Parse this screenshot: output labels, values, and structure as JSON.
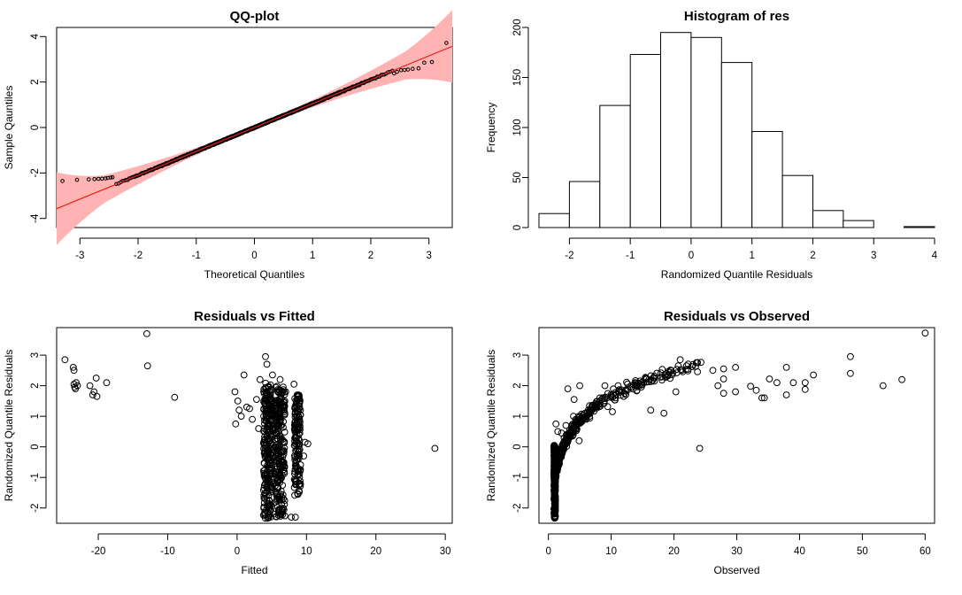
{
  "chart_data": [
    {
      "type": "scatter",
      "id": "qq",
      "title": "QQ-plot",
      "xlabel": "Theoretical Quantiles",
      "ylabel": "Sample Qauntiles",
      "xlim": [
        -3.4,
        3.4
      ],
      "ylim": [
        -4.4,
        4.4
      ],
      "xticks": [
        "-3",
        "-2",
        "-1",
        "0",
        "1",
        "2",
        "3"
      ],
      "yticks": [
        "-4",
        "-2",
        "0",
        "2",
        "4"
      ],
      "n_points": 1020,
      "reference_line": {
        "intercept": 0.0,
        "slope": 1.05,
        "color": "#e8211e"
      },
      "confidence_band_color": "#ffb3b3",
      "tail_points": [
        [
          -3.3,
          -2.35
        ],
        [
          -3.05,
          -2.3
        ],
        [
          -2.85,
          -2.28
        ],
        [
          -2.75,
          -2.27
        ],
        [
          -2.68,
          -2.26
        ],
        [
          -2.62,
          -2.25
        ],
        [
          -2.56,
          -2.24
        ],
        [
          -2.52,
          -2.22
        ],
        [
          -2.47,
          -2.2
        ],
        [
          -2.44,
          -2.19
        ],
        [
          2.4,
          2.38
        ],
        [
          2.45,
          2.45
        ],
        [
          2.52,
          2.52
        ],
        [
          2.58,
          2.53
        ],
        [
          2.64,
          2.55
        ],
        [
          2.72,
          2.58
        ],
        [
          2.82,
          2.6
        ],
        [
          2.92,
          2.85
        ],
        [
          3.05,
          2.88
        ],
        [
          3.3,
          3.72
        ]
      ]
    },
    {
      "type": "bar",
      "id": "hist",
      "title": "Histogram of res",
      "xlabel": "Randomized Quantile Residuals",
      "ylabel": "Frequency",
      "bin_edges": [
        -2.5,
        -2.0,
        -1.5,
        -1.0,
        -0.5,
        0.0,
        0.5,
        1.0,
        1.5,
        2.0,
        2.5,
        3.0,
        3.5,
        4.0
      ],
      "values": [
        14,
        46,
        122,
        173,
        195,
        190,
        165,
        96,
        52,
        17,
        7,
        0,
        1
      ],
      "xlim": [
        -2.5,
        4.0
      ],
      "ylim": [
        0,
        200
      ],
      "xticks": [
        "-2",
        "-1",
        "0",
        "1",
        "2",
        "3",
        "4"
      ],
      "yticks": [
        "0",
        "50",
        "100",
        "150",
        "200"
      ]
    },
    {
      "type": "scatter",
      "id": "rvf",
      "title": "Residuals vs Fitted",
      "xlabel": "Fitted",
      "ylabel": "Randomized Quantile Residuals",
      "xlim": [
        -26,
        31
      ],
      "ylim": [
        -2.5,
        3.9
      ],
      "xticks": [
        "-20",
        "-10",
        "0",
        "10",
        "20",
        "30"
      ],
      "yticks": [
        "-2",
        "-1",
        "0",
        "1",
        "2",
        "3"
      ],
      "points": [
        [
          -24.8,
          2.85
        ],
        [
          -23.6,
          2.6
        ],
        [
          -23.5,
          2.5
        ],
        [
          -23.5,
          2.05
        ],
        [
          -23.4,
          1.95
        ],
        [
          -23.3,
          1.9
        ],
        [
          -23.2,
          2.1
        ],
        [
          -23.0,
          2.0
        ],
        [
          -21.2,
          2.0
        ],
        [
          -20.8,
          1.7
        ],
        [
          -20.6,
          1.8
        ],
        [
          -20.3,
          2.25
        ],
        [
          -20.2,
          1.65
        ],
        [
          -18.8,
          2.1
        ],
        [
          -13.0,
          3.7
        ],
        [
          -12.9,
          2.65
        ],
        [
          -9.0,
          1.62
        ],
        [
          28.5,
          -0.05
        ],
        [
          -0.3,
          1.8
        ],
        [
          -0.2,
          0.75
        ],
        [
          0.1,
          1.5
        ],
        [
          0.3,
          1.2
        ],
        [
          0.6,
          1.0
        ],
        [
          1.0,
          2.35
        ],
        [
          1.4,
          1.3
        ],
        [
          1.8,
          1.25
        ],
        [
          2.2,
          0.9
        ],
        [
          2.8,
          1.55
        ],
        [
          3.1,
          0.6
        ],
        [
          3.3,
          2.2
        ],
        [
          4.1,
          2.95
        ],
        [
          4.3,
          2.7
        ],
        [
          5.1,
          2.35
        ],
        [
          6.2,
          2.2
        ],
        [
          7.0,
          1.8
        ],
        [
          8.2,
          2.05
        ],
        [
          9.8,
          0.15
        ],
        [
          10.2,
          0.1
        ],
        [
          9.6,
          -0.3
        ],
        [
          8.4,
          -2.3
        ],
        [
          7.8,
          -2.3
        ],
        [
          5.3,
          -2.2
        ]
      ],
      "clusters": [
        {
          "x": 4.4,
          "y_range": [
            -2.35,
            2.1
          ],
          "spread": 0.6,
          "count": 240
        },
        {
          "x": 6.2,
          "y_range": [
            -2.3,
            2.0
          ],
          "spread": 0.7,
          "count": 200
        },
        {
          "x": 8.7,
          "y_range": [
            -1.6,
            1.7
          ],
          "spread": 0.45,
          "count": 150
        },
        {
          "x": 5.2,
          "y_range": [
            -1.5,
            1.6
          ],
          "spread": 1.0,
          "count": 60
        }
      ]
    },
    {
      "type": "scatter",
      "id": "rvo",
      "title": "Residuals vs Observed",
      "xlabel": "Observed",
      "ylabel": "Randomized Quantile Residuals",
      "xlim": [
        -1.5,
        61.5
      ],
      "ylim": [
        -2.5,
        3.9
      ],
      "xticks": [
        "0",
        "10",
        "20",
        "30",
        "40",
        "50",
        "60"
      ],
      "yticks": [
        "-2",
        "-1",
        "0",
        "1",
        "2",
        "3"
      ],
      "points": [
        [
          60.0,
          3.72
        ],
        [
          48.1,
          2.95
        ],
        [
          48.1,
          2.4
        ],
        [
          56.3,
          2.2
        ],
        [
          53.3,
          2.0
        ],
        [
          42.2,
          2.35
        ],
        [
          40.9,
          2.1
        ],
        [
          40.9,
          1.88
        ],
        [
          39.0,
          2.1
        ],
        [
          37.9,
          2.6
        ],
        [
          37.9,
          1.7
        ],
        [
          36.4,
          2.1
        ],
        [
          35.2,
          2.22
        ],
        [
          34.4,
          1.6
        ],
        [
          34.0,
          1.6
        ],
        [
          33.1,
          1.85
        ],
        [
          32.2,
          1.98
        ],
        [
          29.8,
          2.6
        ],
        [
          29.8,
          1.8
        ],
        [
          27.9,
          2.55
        ],
        [
          27.9,
          2.22
        ],
        [
          27.9,
          1.75
        ],
        [
          27.0,
          2.0
        ],
        [
          26.2,
          2.5
        ],
        [
          24.1,
          -0.05
        ],
        [
          22.0,
          2.65
        ],
        [
          21.0,
          2.85
        ],
        [
          12.0,
          1.65
        ],
        [
          11.1,
          2.0
        ],
        [
          14.1,
          1.85
        ],
        [
          9.0,
          2.0
        ],
        [
          8.2,
          1.6
        ],
        [
          6.1,
          1.0
        ],
        [
          5.0,
          2.0
        ],
        [
          4.0,
          1.0
        ],
        [
          3.1,
          1.9
        ],
        [
          4.1,
          1.55
        ],
        [
          7.2,
          1.25
        ],
        [
          10.2,
          1.15
        ],
        [
          16.3,
          1.2
        ],
        [
          18.4,
          1.1
        ],
        [
          20.3,
          1.8
        ],
        [
          2.8,
          0.7
        ],
        [
          4.9,
          0.2
        ],
        [
          1.2,
          0.75
        ],
        [
          1.5,
          0.5
        ],
        [
          2.1,
          0.45
        ],
        [
          1.8,
          -0.3
        ]
      ],
      "curve": {
        "form": "a + b*log(x)",
        "a": -1.0,
        "b": 1.15,
        "x_range": [
          1.0,
          25.0
        ],
        "scatter": 0.22,
        "count": 420
      },
      "column": {
        "x": 1.0,
        "y_range": [
          -2.35,
          0.05
        ],
        "count": 260
      }
    }
  ]
}
